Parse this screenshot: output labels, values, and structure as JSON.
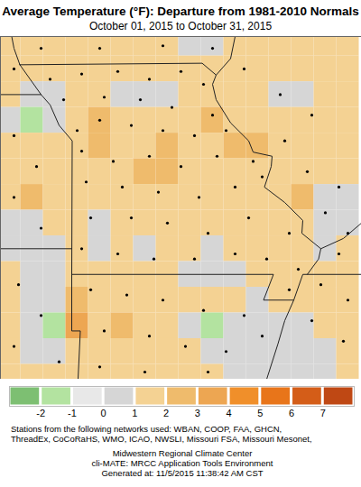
{
  "chart_data": {
    "type": "map",
    "title": "Average Temperature (°F): Departure from 1981-2010 Normals",
    "subtitle": "October 01, 2015 to October 31, 2015",
    "tick_labels": false,
    "xlim": [
      -96.2,
      -88.2
    ],
    "ylim": [
      34.46,
      41.13
    ],
    "grid": {
      "cell_size": 0.5,
      "lon": [
        -96.0,
        -95.5,
        -95.0,
        -94.5,
        -94.0,
        -93.5,
        -93.0,
        -92.5,
        -92.0,
        -91.5,
        -91.0,
        -90.5,
        -90.0,
        -89.5,
        -89.0,
        -88.5
      ],
      "lat": [
        41.0,
        40.5,
        40.0,
        39.5,
        39.0,
        38.5,
        38.0,
        37.5,
        37.0,
        36.5,
        36.0,
        35.5,
        35.0,
        34.5
      ],
      "values": [
        [
          1.5,
          1.5,
          1.5,
          1.5,
          1.5,
          1.5,
          1.5,
          1.5,
          0.5,
          0.5,
          1.5,
          1.5,
          1.5,
          1.5,
          1.5,
          1.5
        ],
        [
          1.5,
          1.5,
          1.5,
          1.5,
          1.5,
          1.5,
          1.5,
          1.5,
          1.5,
          1.5,
          1.5,
          1.5,
          1.5,
          1.5,
          1.5,
          1.5
        ],
        [
          1.5,
          0.5,
          0.5,
          1.5,
          1.5,
          0.5,
          0.5,
          0.5,
          1.5,
          1.5,
          1.5,
          1.5,
          0.5,
          0.5,
          1.5,
          1.5
        ],
        [
          0.5,
          -1.5,
          0.5,
          1.5,
          2.5,
          1.5,
          1.5,
          1.5,
          1.5,
          2.5,
          1.5,
          1.5,
          1.5,
          1.5,
          1.5,
          1.5
        ],
        [
          1.5,
          1.5,
          1.5,
          1.5,
          2.5,
          1.5,
          1.5,
          2.5,
          1.5,
          1.5,
          2.5,
          2.5,
          1.5,
          1.5,
          1.5,
          1.5
        ],
        [
          1.5,
          1.5,
          1.5,
          1.5,
          1.5,
          1.5,
          2.5,
          2.5,
          1.5,
          1.5,
          1.5,
          1.5,
          1.5,
          1.5,
          1.5,
          1.5
        ],
        [
          1.5,
          2.5,
          1.5,
          1.5,
          1.5,
          1.5,
          1.5,
          1.5,
          1.5,
          1.5,
          1.5,
          1.5,
          1.5,
          2.5,
          0.5,
          0.5
        ],
        [
          0.5,
          0.5,
          1.5,
          1.5,
          0.5,
          1.5,
          1.5,
          1.5,
          1.5,
          1.5,
          1.5,
          1.5,
          1.5,
          1.5,
          0.5,
          0.5
        ],
        [
          0.5,
          0.5,
          0.5,
          1.5,
          0.5,
          1.5,
          0.5,
          1.5,
          1.5,
          0.5,
          1.5,
          1.5,
          1.5,
          1.5,
          0.5,
          1.5
        ],
        [
          1.5,
          0.5,
          0.5,
          1.5,
          1.5,
          1.5,
          1.5,
          1.5,
          0.5,
          0.5,
          0.5,
          1.5,
          1.5,
          1.5,
          1.5,
          1.5
        ],
        [
          1.5,
          0.5,
          0.5,
          2.5,
          1.5,
          1.5,
          1.5,
          1.5,
          1.5,
          1.5,
          1.5,
          0.5,
          1.5,
          1.5,
          1.5,
          1.5
        ],
        [
          1.5,
          0.5,
          -1.5,
          3.5,
          1.5,
          2.5,
          1.5,
          1.5,
          0.5,
          -1.5,
          0.5,
          0.5,
          0.5,
          0.5,
          1.5,
          1.5
        ],
        [
          1.5,
          0.5,
          0.5,
          1.5,
          1.5,
          1.5,
          1.5,
          1.5,
          1.5,
          0.5,
          0.5,
          0.5,
          0.5,
          0.5,
          0.5,
          1.5
        ],
        [
          1.5,
          1.5,
          1.5,
          1.5,
          1.5,
          1.5,
          1.5,
          1.5,
          1.5,
          1.5,
          0.5,
          0.5,
          0.5,
          0.5,
          0.5,
          1.5
        ]
      ]
    },
    "colorbar": {
      "range": [
        -3,
        8
      ],
      "ticks": [
        -2,
        -1,
        0,
        1,
        2,
        3,
        4,
        5,
        6,
        7
      ],
      "colors": [
        "#7dbf72",
        "#b3e3a0",
        "#e8e8e8",
        "#d6d6d6",
        "#f4d293",
        "#efbb6c",
        "#eda652",
        "#f08f2a",
        "#e8751a",
        "#d45d18",
        "#bf4814"
      ]
    },
    "boundaries": [
      [
        [
          -95.77,
          40.58
        ],
        [
          -91.73,
          40.61
        ],
        [
          -91.42,
          40.38
        ],
        [
          -91.5,
          40.2
        ],
        [
          -91.42,
          39.9
        ],
        [
          -91.1,
          39.45
        ],
        [
          -90.7,
          39.1
        ],
        [
          -90.6,
          38.88
        ],
        [
          -90.18,
          38.8
        ],
        [
          -90.2,
          38.6
        ],
        [
          -90.35,
          38.2
        ],
        [
          -89.9,
          37.9
        ],
        [
          -89.5,
          37.55
        ],
        [
          -89.52,
          37.3
        ],
        [
          -89.1,
          37.0
        ],
        [
          -89.15,
          36.8
        ],
        [
          -89.4,
          36.5
        ],
        [
          -89.5,
          36.5
        ],
        [
          -89.7,
          36.0
        ],
        [
          -90.37,
          36.0
        ],
        [
          -90.15,
          36.5
        ],
        [
          -94.62,
          36.5
        ],
        [
          -94.61,
          39.1
        ],
        [
          -94.9,
          39.4
        ],
        [
          -95.1,
          39.8
        ],
        [
          -95.3,
          40.0
        ],
        [
          -95.77,
          40.58
        ]
      ],
      [
        [
          -95.77,
          40.58
        ],
        [
          -95.9,
          40.9
        ],
        [
          -95.95,
          41.13
        ]
      ],
      [
        [
          -95.3,
          40.0
        ],
        [
          -96.2,
          40.0
        ]
      ],
      [
        [
          -94.62,
          37.0
        ],
        [
          -96.2,
          37.0
        ]
      ],
      [
        [
          -94.62,
          36.5
        ],
        [
          -94.62,
          35.4
        ],
        [
          -94.43,
          35.4
        ],
        [
          -94.48,
          34.46
        ]
      ],
      [
        [
          -89.7,
          36.0
        ],
        [
          -89.9,
          35.6
        ],
        [
          -90.05,
          35.15
        ],
        [
          -90.3,
          34.46
        ]
      ],
      [
        [
          -89.4,
          36.5
        ],
        [
          -88.2,
          36.5
        ]
      ],
      [
        [
          -89.1,
          37.0
        ],
        [
          -88.6,
          37.2
        ],
        [
          -88.2,
          37.5
        ]
      ],
      [
        [
          -91.42,
          40.38
        ],
        [
          -91.1,
          40.7
        ],
        [
          -91.0,
          41.13
        ]
      ]
    ],
    "stations": [
      [
        -95.1,
        40.3
      ],
      [
        -94.4,
        40.4
      ],
      [
        -93.6,
        40.45
      ],
      [
        -92.9,
        40.3
      ],
      [
        -92.2,
        40.45
      ],
      [
        -91.7,
        40.2
      ],
      [
        -94.8,
        39.9
      ],
      [
        -93.9,
        39.95
      ],
      [
        -93.1,
        39.9
      ],
      [
        -92.4,
        39.75
      ],
      [
        -91.5,
        39.6
      ],
      [
        -94.5,
        39.3
      ],
      [
        -94.0,
        39.5
      ],
      [
        -93.3,
        39.4
      ],
      [
        -92.6,
        39.3
      ],
      [
        -91.9,
        39.2
      ],
      [
        -91.2,
        39.3
      ],
      [
        -94.4,
        38.9
      ],
      [
        -93.7,
        38.7
      ],
      [
        -92.9,
        38.8
      ],
      [
        -92.2,
        38.6
      ],
      [
        -91.4,
        38.8
      ],
      [
        -90.6,
        38.7
      ],
      [
        -94.3,
        38.3
      ],
      [
        -93.5,
        38.2
      ],
      [
        -92.7,
        38.1
      ],
      [
        -91.8,
        38.0
      ],
      [
        -91.0,
        38.2
      ],
      [
        -90.4,
        38.4
      ],
      [
        -94.2,
        37.6
      ],
      [
        -93.3,
        37.6
      ],
      [
        -92.5,
        37.5
      ],
      [
        -91.6,
        37.3
      ],
      [
        -90.7,
        37.6
      ],
      [
        -89.8,
        37.3
      ],
      [
        -94.4,
        37.0
      ],
      [
        -93.6,
        36.9
      ],
      [
        -92.8,
        36.8
      ],
      [
        -91.9,
        36.8
      ],
      [
        -91.0,
        36.9
      ],
      [
        -90.3,
        36.8
      ],
      [
        -89.6,
        36.6
      ],
      [
        -89.8,
        36.2
      ],
      [
        -95.9,
        39.2
      ],
      [
        -95.4,
        38.6
      ],
      [
        -95.9,
        38.0
      ],
      [
        -95.3,
        37.4
      ],
      [
        -95.3,
        40.9
      ],
      [
        -94.0,
        40.9
      ],
      [
        -92.6,
        40.95
      ],
      [
        -91.5,
        40.9
      ],
      [
        -95.9,
        40.5
      ],
      [
        -90.8,
        40.5
      ],
      [
        -90.0,
        40.0
      ],
      [
        -89.3,
        39.6
      ],
      [
        -89.9,
        39.1
      ],
      [
        -89.4,
        38.5
      ],
      [
        -88.7,
        38.2
      ],
      [
        -89.0,
        37.7
      ],
      [
        -88.5,
        37.3
      ],
      [
        -88.7,
        36.9
      ],
      [
        -89.1,
        36.3
      ],
      [
        -88.5,
        36.0
      ],
      [
        -89.3,
        35.6
      ],
      [
        -88.6,
        35.2
      ],
      [
        -94.2,
        36.2
      ],
      [
        -93.4,
        36.1
      ],
      [
        -92.6,
        36.0
      ],
      [
        -91.7,
        35.8
      ],
      [
        -90.8,
        35.7
      ],
      [
        -93.9,
        35.4
      ],
      [
        -92.9,
        35.3
      ],
      [
        -92.1,
        35.1
      ],
      [
        -91.2,
        35.0
      ],
      [
        -90.4,
        35.3
      ],
      [
        -94.0,
        34.7
      ],
      [
        -93.0,
        34.6
      ],
      [
        -91.6,
        34.6
      ],
      [
        -95.8,
        36.3
      ],
      [
        -95.3,
        35.7
      ],
      [
        -95.9,
        35.1
      ],
      [
        -94.9,
        34.8
      ]
    ],
    "caption": {
      "networks": [
        "Stations from the following networks used: WBAN, COOP, FAA, GHCN,",
        "ThreadEx, CoCoRaHS, WMO, ICAO, NWSLI, Missouri FSA, Missouri Mesonet,"
      ],
      "credits": [
        "Midwestern Regional Climate Center",
        "cli-MATE: MRCC Application Tools Environment",
        "Generated at: 11/5/2015 11:38:42 AM CST"
      ]
    }
  }
}
